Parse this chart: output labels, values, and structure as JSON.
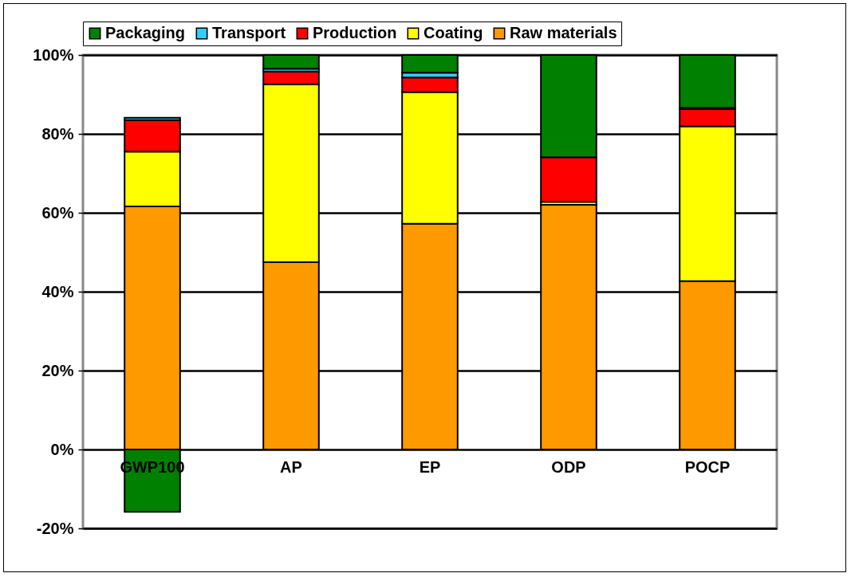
{
  "chart_data": {
    "type": "bar",
    "stacked": true,
    "categories": [
      "GWP100",
      "AP",
      "EP",
      "ODP",
      "POCP"
    ],
    "series": [
      {
        "name": "Raw materials",
        "color": "#ff9900",
        "values": [
          61.6,
          47.5,
          57.2,
          62.0,
          42.7
        ]
      },
      {
        "name": "Coating",
        "color": "#ffff00",
        "values": [
          13.9,
          45.1,
          33.4,
          0.8,
          39.2
        ]
      },
      {
        "name": "Production",
        "color": "#ff0000",
        "values": [
          8.0,
          3.2,
          3.7,
          11.3,
          4.4
        ]
      },
      {
        "name": "Transport",
        "color": "#33ccff",
        "values": [
          0.6,
          0.7,
          1.2,
          0,
          0.3
        ]
      },
      {
        "name": "Packaging",
        "color": "#008000",
        "values": [
          -15.8,
          3.5,
          4.5,
          25.9,
          13.4
        ]
      }
    ],
    "ylim": [
      -20,
      100
    ],
    "yticks": [
      {
        "value": -20,
        "label": "-20%"
      },
      {
        "value": 0,
        "label": "0%"
      },
      {
        "value": 20,
        "label": "20%"
      },
      {
        "value": 40,
        "label": "40%"
      },
      {
        "value": 60,
        "label": "60%"
      },
      {
        "value": 80,
        "label": "80%"
      },
      {
        "value": 100,
        "label": "100%"
      }
    ],
    "grid": "y",
    "legend": "top"
  }
}
